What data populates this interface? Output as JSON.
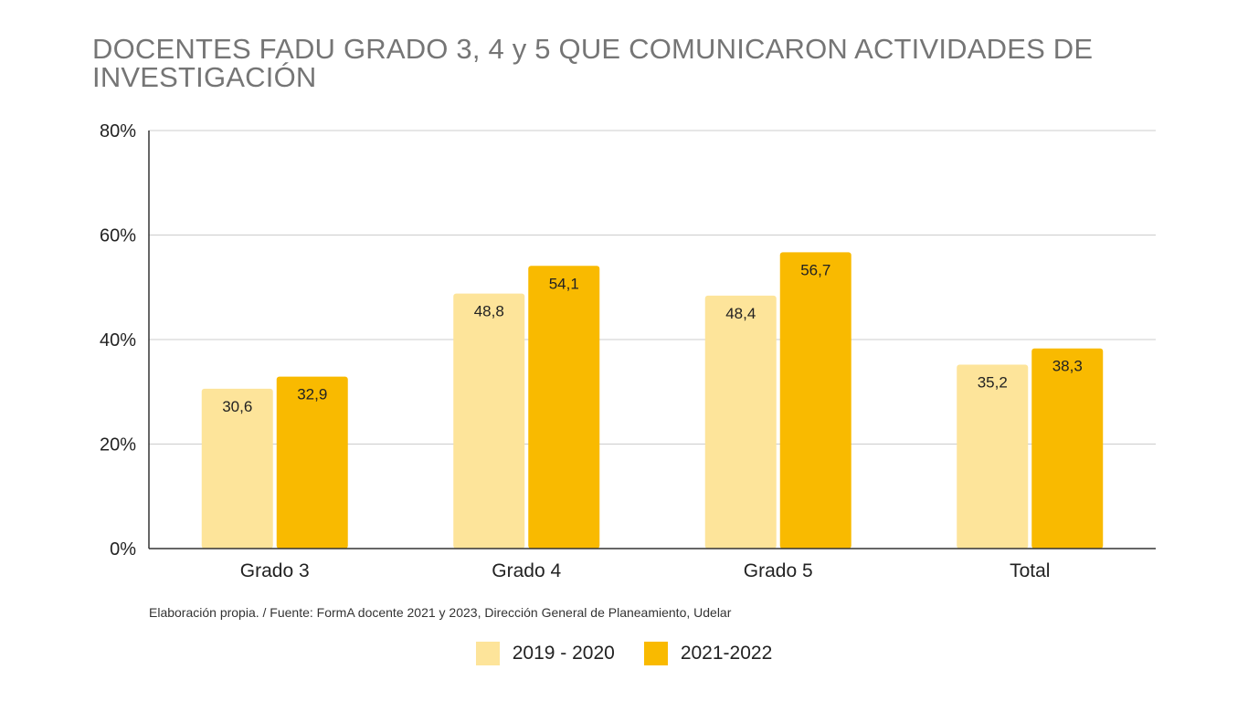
{
  "colors": {
    "series_2019_2020": "#fde49a",
    "series_2021_2022": "#f9ba00",
    "gridline": "#cccccc",
    "axis": "#333333"
  },
  "chart_data": {
    "type": "bar",
    "title_line1": "DOCENTES FADU GRADO 3, 4 y 5 QUE COMUNICARON ACTIVIDADES DE",
    "title_line2": "INVESTIGACIÓN",
    "xlabel": "",
    "ylabel": "",
    "categories": [
      "Grado 3",
      "Grado 4",
      "Grado 5",
      "Total"
    ],
    "series": [
      {
        "name": "2019 - 2020",
        "values": [
          30.6,
          48.8,
          48.4,
          35.2
        ],
        "labels": [
          "30,6",
          "48,8",
          "48,4",
          "35,2"
        ]
      },
      {
        "name": "2021-2022",
        "values": [
          32.9,
          54.1,
          56.7,
          38.3
        ],
        "labels": [
          "32,9",
          "54,1",
          "56,7",
          "38,3"
        ]
      }
    ],
    "ylim": [
      0,
      80
    ],
    "yticks": [
      0,
      20,
      40,
      60,
      80
    ],
    "ytick_labels": [
      "0%",
      "20%",
      "40%",
      "60%",
      "80%"
    ],
    "grid": true,
    "legend_position": "bottom-center"
  },
  "source_note": "Elaboración propia. / Fuente: FormA docente 2021 y 2023, Dirección General de Planeamiento, Udelar",
  "legend": [
    {
      "label": "2019 - 2020",
      "color": "#fde49a"
    },
    {
      "label": "2021-2022",
      "color": "#f9ba00"
    }
  ]
}
